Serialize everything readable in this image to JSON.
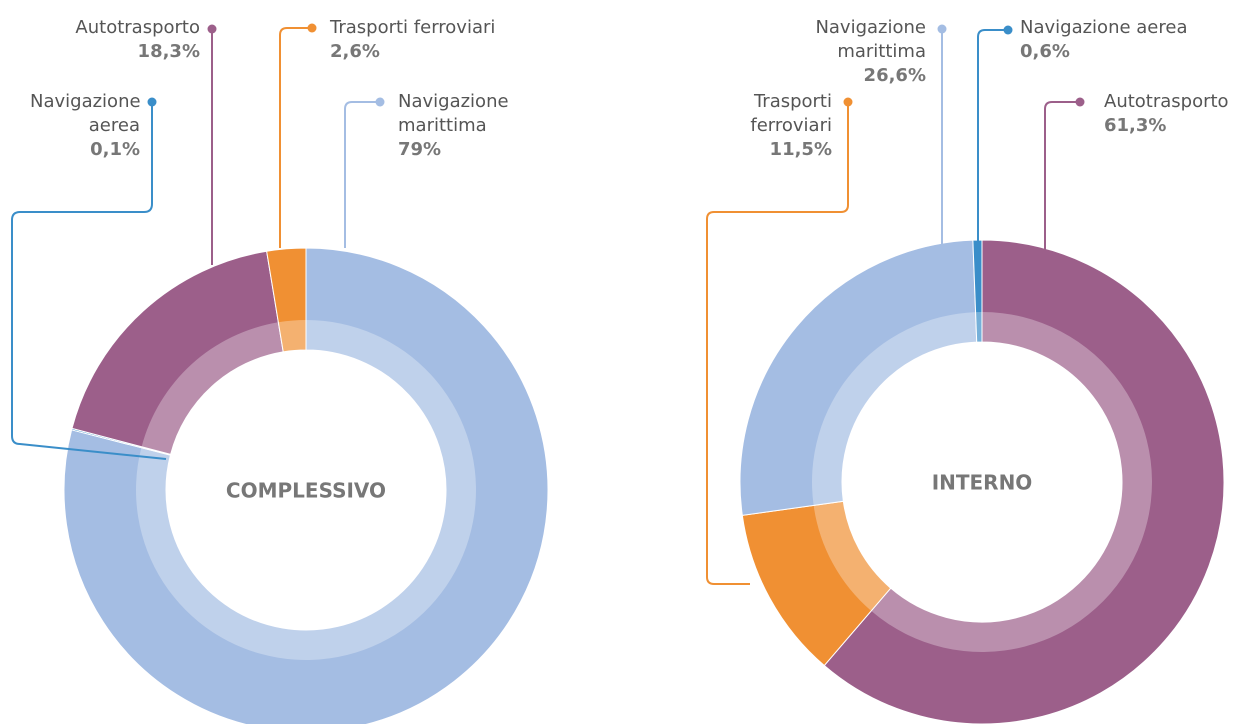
{
  "chart_data": [
    {
      "type": "pie",
      "title": "COMPLESSIVO",
      "categories": [
        "Navigazione marittima",
        "Navigazione aerea",
        "Autotrasporto",
        "Trasporti ferroviari"
      ],
      "values": [
        79,
        0.1,
        18.3,
        2.6
      ],
      "value_labels": [
        "79%",
        "0,1%",
        "18,3%",
        "2,6%"
      ],
      "colors": [
        "#a4bde3",
        "#3a8ec9",
        "#9c5f8a",
        "#f09033"
      ]
    },
    {
      "type": "pie",
      "title": "INTERNO",
      "categories": [
        "Autotrasporto",
        "Trasporti ferroviari",
        "Navigazione marittima",
        "Navigazione aerea"
      ],
      "values": [
        61.3,
        11.5,
        26.6,
        0.6
      ],
      "value_labels": [
        "61,3%",
        "11,5%",
        "26,6%",
        "0,6%"
      ],
      "colors": [
        "#9c5f8a",
        "#f09033",
        "#a4bde3",
        "#3a8ec9"
      ]
    }
  ]
}
